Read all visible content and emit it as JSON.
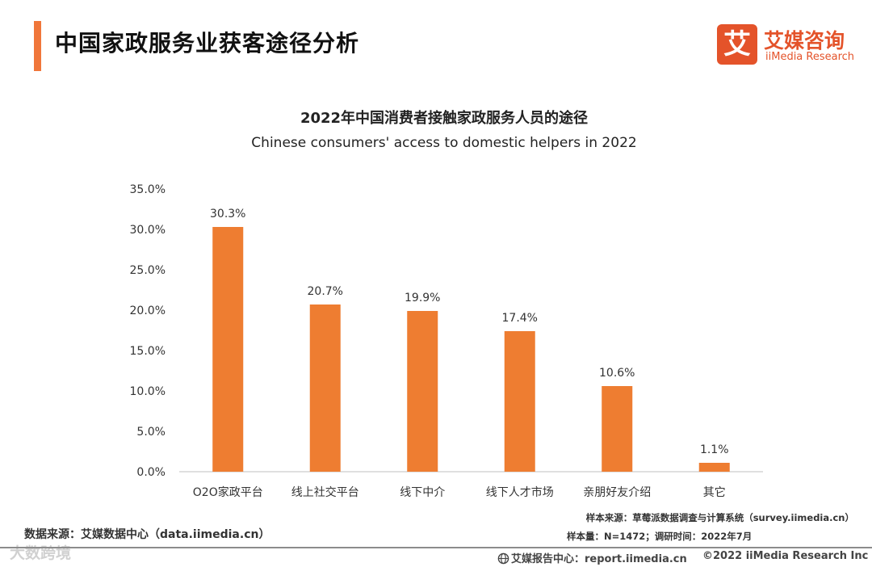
{
  "header": {
    "title": "中国家政服务业获客途径分析",
    "logo_mark": "艾",
    "logo_cn": "艾媒咨询",
    "logo_en": "iiMedia Research"
  },
  "colors": {
    "accent": "#f0763a",
    "bar": "#ee7d31",
    "brand": "#e4532a"
  },
  "chart_data": {
    "type": "bar",
    "title": "2022年中国消费者接触家政服务人员的途径",
    "subtitle": "Chinese consumers' access to domestic helpers in 2022",
    "categories": [
      "O2O家政平台",
      "线上社交平台",
      "线下中介",
      "线下人才市场",
      "亲朋好友介绍",
      "其它"
    ],
    "values": [
      30.3,
      20.7,
      19.9,
      17.4,
      10.6,
      1.1
    ],
    "data_labels": [
      "30.3%",
      "20.7%",
      "19.9%",
      "17.4%",
      "10.6%",
      "1.1%"
    ],
    "yticks": [
      "0.0%",
      "5.0%",
      "10.0%",
      "15.0%",
      "20.0%",
      "25.0%",
      "30.0%",
      "35.0%"
    ],
    "ylim": [
      0,
      35
    ],
    "xlabel": "",
    "ylabel": "",
    "grid": false
  },
  "footer": {
    "data_source": "数据来源：艾媒数据中心（data.iimedia.cn）",
    "sample_source": "样本来源：草莓派数据调查与计算系统（survey.iimedia.cn）",
    "sample_size": "样本量：N=1472；调研时间：2022年7月",
    "report_center": "艾媒报告中心：report.iimedia.cn",
    "copyright": "©2022  iiMedia Research  Inc",
    "watermark": "大数跨境"
  }
}
